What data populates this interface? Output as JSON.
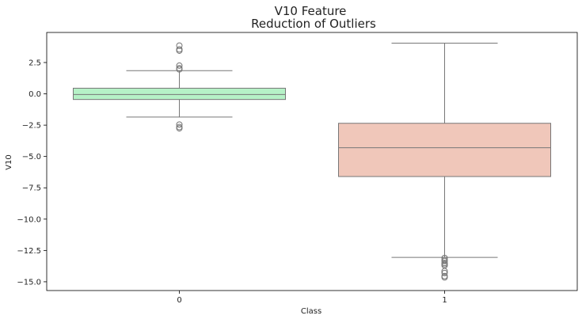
{
  "chart_data": {
    "type": "box",
    "title_lines": [
      "V10 Feature",
      "Reduction of Outliers"
    ],
    "xlabel": "Class",
    "ylabel": "V10",
    "categories": [
      "0",
      "1"
    ],
    "ylim": [
      -15.7,
      4.9
    ],
    "yticks": [
      2.5,
      0.0,
      -2.5,
      -5.0,
      -7.5,
      -10.0,
      -12.5,
      -15.0
    ],
    "ytick_labels": [
      "2.5",
      "0.0",
      "−2.5",
      "−5.0",
      "−7.5",
      "−10.0",
      "−12.5",
      "−15.0"
    ],
    "grid": false,
    "series": [
      {
        "category": "0",
        "color": "#b6f2c7",
        "whisker_low": -1.85,
        "q1": -0.45,
        "median": -0.05,
        "q3": 0.45,
        "whisker_high": 1.85,
        "outliers": [
          3.85,
          3.55,
          3.45,
          2.25,
          2.05,
          1.95,
          -2.45,
          -2.65,
          -2.75
        ]
      },
      {
        "category": "1",
        "color": "#f0c7ba",
        "whisker_low": -13.05,
        "q1": -6.6,
        "median": -4.3,
        "q3": -2.35,
        "whisker_high": 4.05,
        "outliers": [
          -13.1,
          -13.25,
          -13.35,
          -13.5,
          -13.6,
          -13.7,
          -14.15,
          -14.3,
          -14.55,
          -14.65
        ]
      }
    ],
    "line_color": "#777777",
    "outlier_edge_color": "#777777"
  }
}
